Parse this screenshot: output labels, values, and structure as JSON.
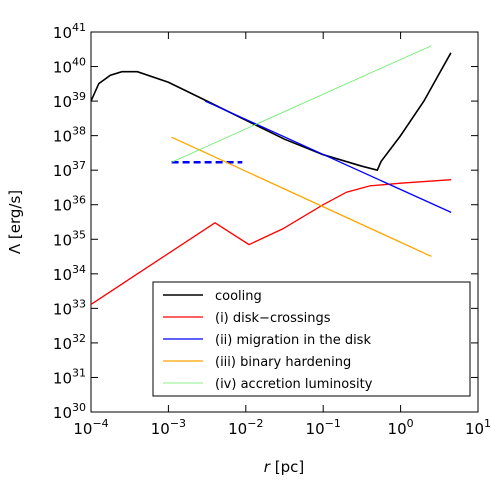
{
  "chart_data": {
    "type": "line",
    "log_x": true,
    "log_y": true,
    "xlabel": {
      "symbol": "r",
      "unit": "[pc]"
    },
    "ylabel": "Λ [erg/s]",
    "xlim": [
      0.0001,
      10
    ],
    "ylim": [
      1e+30,
      1e+41
    ],
    "xticks": [
      {
        "value": 0.0001,
        "label": "10",
        "exponent": "−4"
      },
      {
        "value": 0.001,
        "label": "10",
        "exponent": "−3"
      },
      {
        "value": 0.01,
        "label": "10",
        "exponent": "−2"
      },
      {
        "value": 0.1,
        "label": "10",
        "exponent": "−1"
      },
      {
        "value": 1,
        "label": "10",
        "exponent": "0"
      },
      {
        "value": 10,
        "label": "10",
        "exponent": "1"
      }
    ],
    "yticks": [
      {
        "value": 1e+30,
        "label": "10",
        "exponent": "30"
      },
      {
        "value": 1e+31,
        "label": "10",
        "exponent": "31"
      },
      {
        "value": 1e+32,
        "label": "10",
        "exponent": "32"
      },
      {
        "value": 1e+33,
        "label": "10",
        "exponent": "33"
      },
      {
        "value": 1e+34,
        "label": "10",
        "exponent": "34"
      },
      {
        "value": 1e+35,
        "label": "10",
        "exponent": "35"
      },
      {
        "value": 1e+36,
        "label": "10",
        "exponent": "36"
      },
      {
        "value": 1e+37,
        "label": "10",
        "exponent": "37"
      },
      {
        "value": 1e+38,
        "label": "10",
        "exponent": "38"
      },
      {
        "value": 1e+39,
        "label": "10",
        "exponent": "39"
      },
      {
        "value": 1e+40,
        "label": "10",
        "exponent": "40"
      },
      {
        "value": 1e+41,
        "label": "10",
        "exponent": "41"
      }
    ],
    "legend": "lower right",
    "series": [
      {
        "name": "cooling",
        "color": "#000000",
        "width": 1.6,
        "x": [
          0.0001,
          0.000126,
          0.000178,
          0.000251,
          0.000398,
          0.001,
          0.00316,
          0.01,
          0.0316,
          0.1,
          0.316,
          0.5,
          0.56,
          1,
          2,
          3.16,
          4.47
        ],
        "values": [
          1e+39,
          3.2e+39,
          5.6e+39,
          7.1e+39,
          7.1e+39,
          3.5e+39,
          1e+39,
          2.8e+38,
          7.9e+37,
          2.8e+37,
          1.3e+37,
          1e+37,
          1.8e+37,
          1e+38,
          1e+39,
          6.3e+39,
          2.5e+40
        ]
      },
      {
        "name": "(i) disk−crossings",
        "color": "#ff0000",
        "width": 1.3,
        "x": [
          0.0001,
          0.004,
          0.011,
          0.03,
          0.1,
          0.2,
          0.4,
          1,
          4.5
        ],
        "values": [
          1.3e+33,
          3e+35,
          7e+34,
          2e+35,
          1e+36,
          2.3e+36,
          3.5e+36,
          4.2e+36,
          5.3e+36
        ]
      },
      {
        "name": "(ii) migration in the disk",
        "color": "#0000ff",
        "width": 1.3,
        "x": [
          0.003,
          4.5
        ],
        "values": [
          1e+39,
          6e+35
        ],
        "dashed_x": [
          0.0011,
          0.009
        ],
        "dashed_values": [
          1.7e+37,
          1.7e+37
        ]
      },
      {
        "name": "(iii) binary hardening",
        "color": "#ffa500",
        "width": 1.3,
        "x": [
          0.0011,
          2.5
        ],
        "values": [
          9e+37,
          3.2e+34
        ]
      },
      {
        "name": "(iv) accretion luminosity",
        "color": "#66ee66",
        "width": 0.8,
        "x": [
          0.0011,
          2.5
        ],
        "values": [
          1.7e+37,
          4e+40
        ]
      }
    ]
  }
}
